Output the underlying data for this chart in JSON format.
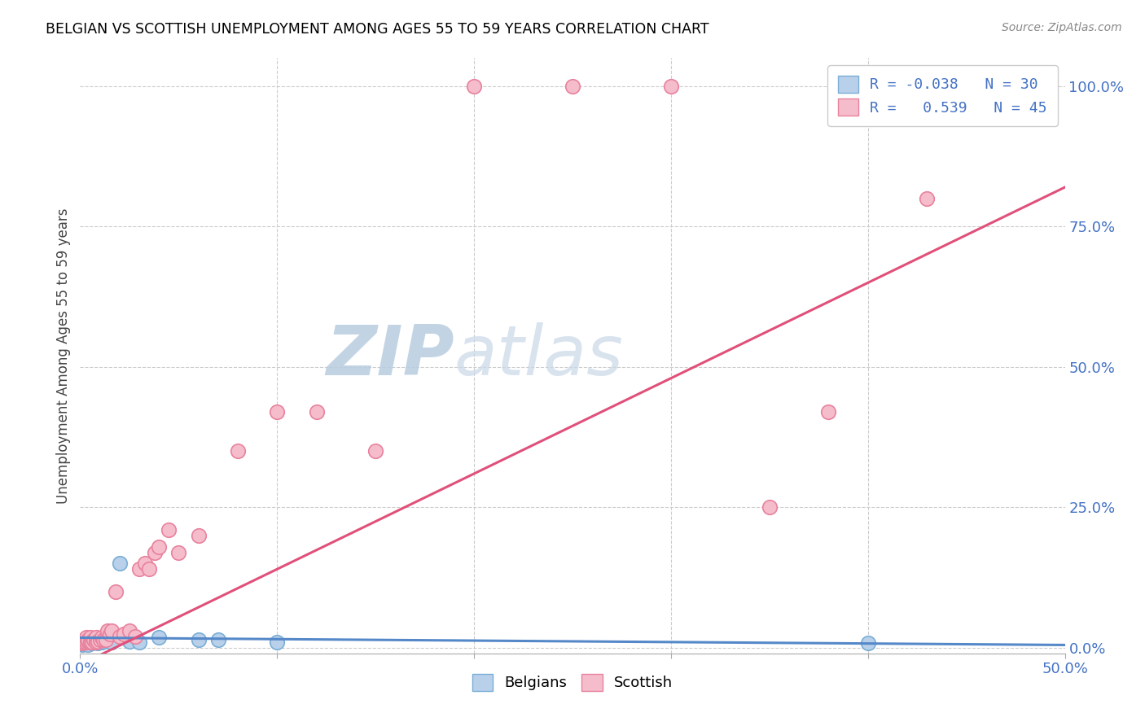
{
  "title": "BELGIAN VS SCOTTISH UNEMPLOYMENT AMONG AGES 55 TO 59 YEARS CORRELATION CHART",
  "source": "Source: ZipAtlas.com",
  "ylabel": "Unemployment Among Ages 55 to 59 years",
  "xlim": [
    0.0,
    0.5
  ],
  "ylim": [
    -0.01,
    1.05
  ],
  "xtick_pos": [
    0.0,
    0.1,
    0.2,
    0.3,
    0.4,
    0.5
  ],
  "xtick_labels": [
    "0.0%",
    "",
    "",
    "",
    "",
    "50.0%"
  ],
  "ytick_vals": [
    0.0,
    0.25,
    0.5,
    0.75,
    1.0
  ],
  "ytick_labels": [
    "0.0%",
    "25.0%",
    "50.0%",
    "75.0%",
    "100.0%"
  ],
  "belgian_color": "#b8d0ea",
  "scottish_color": "#f5bccb",
  "belgian_edge": "#7aaed6",
  "scottish_edge": "#e8829e",
  "trend_belgian_color": "#5588c8",
  "trend_scottish_color": "#e0507a",
  "watermark_color": "#ccdaee",
  "legend_line1": "R = -0.038   N = 30",
  "legend_line2": "R =   0.539   N = 45",
  "bel_trend_x": [
    0.0,
    0.5
  ],
  "bel_trend_y": [
    0.018,
    0.005
  ],
  "sco_trend_x": [
    0.0,
    0.5
  ],
  "sco_trend_y": [
    -0.03,
    0.82
  ],
  "bel_x": [
    0.001,
    0.001,
    0.002,
    0.002,
    0.002,
    0.003,
    0.003,
    0.003,
    0.004,
    0.004,
    0.005,
    0.005,
    0.006,
    0.006,
    0.007,
    0.008,
    0.009,
    0.01,
    0.011,
    0.012,
    0.014,
    0.016,
    0.02,
    0.025,
    0.03,
    0.04,
    0.06,
    0.07,
    0.1,
    0.4
  ],
  "bel_y": [
    0.005,
    0.01,
    0.008,
    0.012,
    0.007,
    0.01,
    0.015,
    0.008,
    0.012,
    0.006,
    0.01,
    0.015,
    0.01,
    0.008,
    0.012,
    0.01,
    0.008,
    0.015,
    0.01,
    0.012,
    0.015,
    0.01,
    0.15,
    0.012,
    0.01,
    0.018,
    0.015,
    0.015,
    0.01,
    0.008
  ],
  "sco_x": [
    0.001,
    0.002,
    0.002,
    0.003,
    0.003,
    0.004,
    0.004,
    0.005,
    0.005,
    0.006,
    0.006,
    0.007,
    0.008,
    0.008,
    0.009,
    0.01,
    0.011,
    0.012,
    0.013,
    0.014,
    0.015,
    0.016,
    0.018,
    0.02,
    0.022,
    0.025,
    0.028,
    0.03,
    0.033,
    0.035,
    0.038,
    0.04,
    0.045,
    0.05,
    0.06,
    0.08,
    0.1,
    0.12,
    0.15,
    0.2,
    0.25,
    0.3,
    0.35,
    0.38,
    0.43
  ],
  "sco_y": [
    0.008,
    0.01,
    0.015,
    0.01,
    0.018,
    0.012,
    0.015,
    0.01,
    0.018,
    0.012,
    0.01,
    0.015,
    0.01,
    0.018,
    0.012,
    0.015,
    0.018,
    0.015,
    0.015,
    0.03,
    0.025,
    0.03,
    0.1,
    0.02,
    0.025,
    0.03,
    0.02,
    0.14,
    0.15,
    0.14,
    0.17,
    0.18,
    0.21,
    0.17,
    0.2,
    0.35,
    0.42,
    0.42,
    0.35,
    1.0,
    1.0,
    1.0,
    0.25,
    0.42,
    0.8
  ]
}
